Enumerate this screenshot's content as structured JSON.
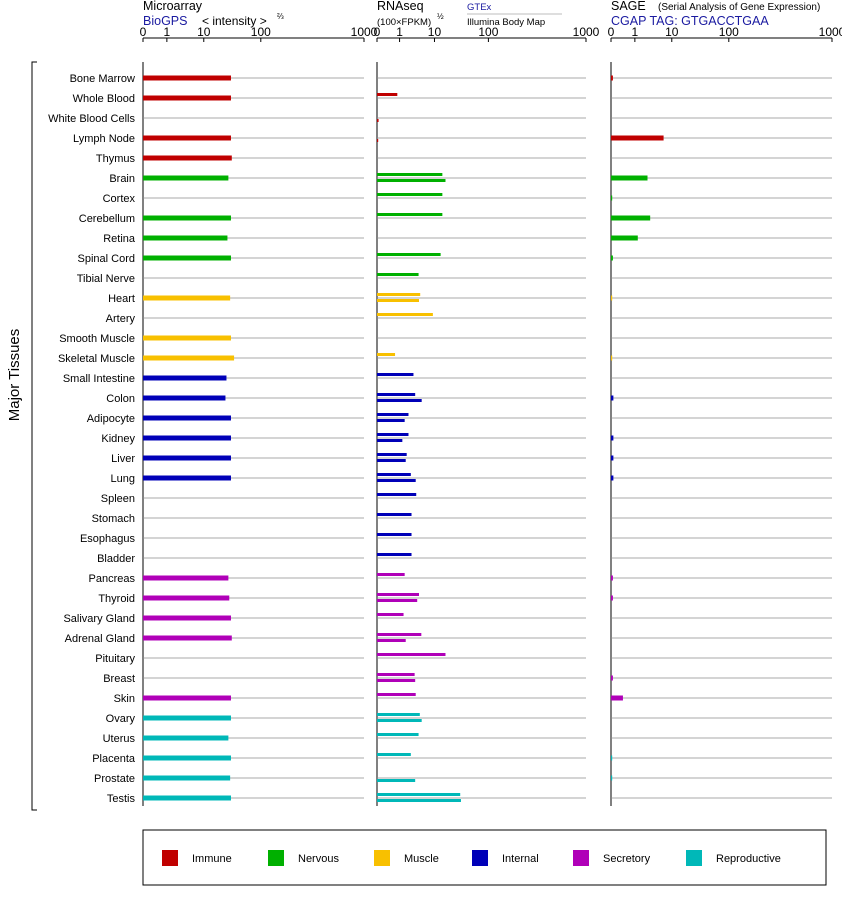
{
  "chart_data": {
    "type": "bar",
    "y_axis_title": "Major Tissues",
    "categories": [
      "Bone Marrow",
      "Whole Blood",
      "White Blood Cells",
      "Lymph Node",
      "Thymus",
      "Brain",
      "Cortex",
      "Cerebellum",
      "Retina",
      "Spinal Cord",
      "Tibial Nerve",
      "Heart",
      "Artery",
      "Smooth Muscle",
      "Skeletal Muscle",
      "Small Intestine",
      "Colon",
      "Adipocyte",
      "Kidney",
      "Liver",
      "Lung",
      "Spleen",
      "Stomach",
      "Esophagus",
      "Bladder",
      "Pancreas",
      "Thyroid",
      "Salivary Gland",
      "Adrenal Gland",
      "Pituitary",
      "Breast",
      "Skin",
      "Ovary",
      "Uterus",
      "Placenta",
      "Prostate",
      "Testis"
    ],
    "groups": [
      {
        "name": "Immune",
        "color": "#c00000",
        "members": [
          0,
          4
        ]
      },
      {
        "name": "Nervous",
        "color": "#00b000",
        "members": [
          5,
          10
        ]
      },
      {
        "name": "Muscle",
        "color": "#f8c000",
        "members": [
          11,
          14
        ]
      },
      {
        "name": "Internal",
        "color": "#0000b8",
        "members": [
          15,
          24
        ]
      },
      {
        "name": "Secretory",
        "color": "#b000b8",
        "members": [
          25,
          31
        ]
      },
      {
        "name": "Reproductive",
        "color": "#00b8b8",
        "members": [
          32,
          36
        ]
      }
    ],
    "axis_ticks": [
      "0",
      "1",
      "10",
      "100",
      "1000"
    ],
    "panels": [
      {
        "key": "microarray",
        "title": "Microarray",
        "subtitle": "BioGPS",
        "scale_note": "< intensity >",
        "scale_exp": "⅔",
        "values": [
          30,
          30,
          null,
          30,
          31,
          27,
          null,
          30,
          26,
          30,
          null,
          29,
          null,
          30,
          34,
          25,
          24,
          30,
          30,
          30,
          30,
          null,
          null,
          null,
          null,
          27,
          28,
          30,
          31,
          null,
          null,
          30,
          30,
          27,
          30,
          29,
          30
        ]
      },
      {
        "key": "rnaseq",
        "title": "RNAseq",
        "scale_note": "(100×FPKM)",
        "scale_exp": "½",
        "sources": [
          "GTEx",
          "Illumina Body Map"
        ],
        "values_gtex": [
          null,
          0.9,
          null,
          null,
          null,
          14,
          14,
          14,
          null,
          13,
          3.5,
          3.9,
          9,
          null,
          0.8,
          2.5,
          2.8,
          1.8,
          1.8,
          1.6,
          2.1,
          3,
          2.2,
          2.2,
          2.2,
          1.4,
          3.6,
          1.3,
          4.2,
          16,
          2.7,
          2.9,
          3.8,
          3.5,
          2.1,
          null,
          30
        ],
        "values_illumina": [
          null,
          null,
          0.07,
          0.05,
          null,
          16,
          null,
          null,
          null,
          null,
          null,
          3.6,
          null,
          null,
          null,
          null,
          4.3,
          1.4,
          1.2,
          1.5,
          2.9,
          null,
          null,
          null,
          null,
          null,
          3.2,
          null,
          1.5,
          null,
          2.8,
          null,
          4.3,
          null,
          null,
          2.8,
          31
        ]
      },
      {
        "key": "sage",
        "title": "SAGE",
        "subtitle_note": "(Serial Analysis of Gene Expression)",
        "tag": "CGAP TAG: GTGACCTGAA",
        "values": [
          0.08,
          null,
          null,
          6,
          null,
          2.2,
          0.05,
          2.6,
          1.2,
          0.08,
          null,
          0.02,
          null,
          null,
          0.02,
          null,
          0.1,
          null,
          0.1,
          0.1,
          0.1,
          null,
          null,
          null,
          null,
          0.08,
          0.08,
          null,
          null,
          null,
          0.08,
          0.5,
          null,
          null,
          0.05,
          0.05,
          null
        ]
      }
    ]
  }
}
